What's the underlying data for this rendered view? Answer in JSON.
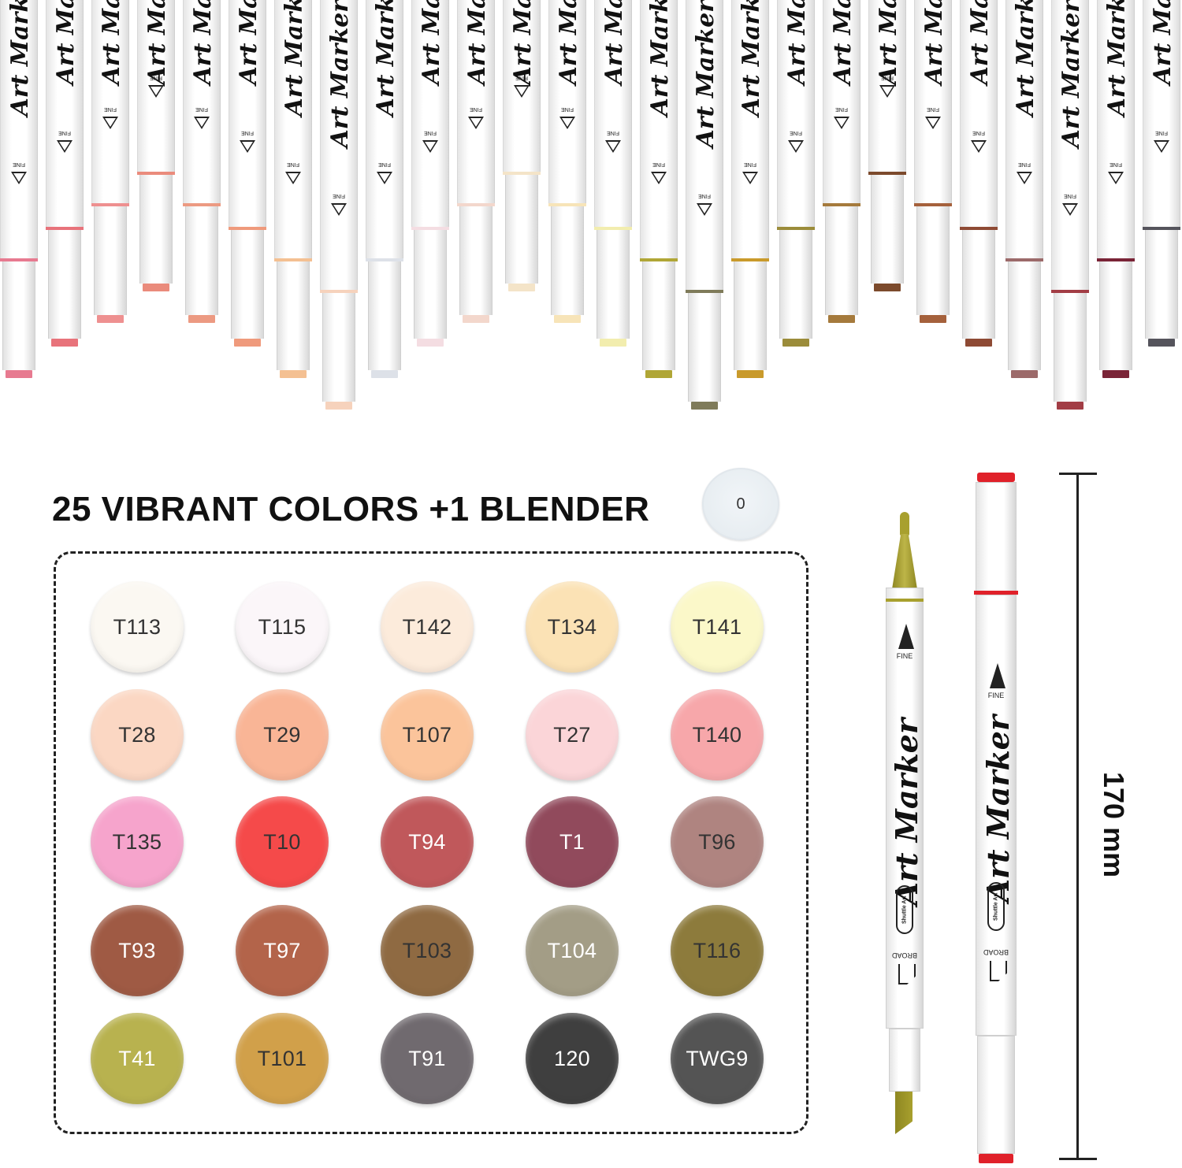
{
  "headline": "25 VIBRANT COLORS +1 BLENDER",
  "blender": {
    "label": "0",
    "color": "#e9eff3"
  },
  "marker_text": {
    "script": "Art Marker",
    "fine_label": "FINE",
    "broad_label": "BROAD",
    "brand_label": "Shuttle Art"
  },
  "dimension": {
    "label": "170 mm"
  },
  "top_markers": [
    {
      "color": "#e77a90"
    },
    {
      "color": "#e8737b"
    },
    {
      "color": "#ee9090"
    },
    {
      "color": "#ea8b7c"
    },
    {
      "color": "#ec9a82"
    },
    {
      "color": "#ef9a7c"
    },
    {
      "color": "#f4c092"
    },
    {
      "color": "#f6d2bc"
    },
    {
      "color": "#dde1e8"
    },
    {
      "color": "#f4dde2"
    },
    {
      "color": "#f3d7cc"
    },
    {
      "color": "#f4e4c8"
    },
    {
      "color": "#f7e4b8"
    },
    {
      "color": "#f2edae"
    },
    {
      "color": "#b0a636"
    },
    {
      "color": "#7f7b5a"
    },
    {
      "color": "#c99a2b"
    },
    {
      "color": "#9b8c3a"
    },
    {
      "color": "#a57a3c"
    },
    {
      "color": "#7c4a2c"
    },
    {
      "color": "#a5613c"
    },
    {
      "color": "#8e4a34"
    },
    {
      "color": "#9c6a6a"
    },
    {
      "color": "#a23d45"
    },
    {
      "color": "#7a2437"
    },
    {
      "color": "#55545c"
    }
  ],
  "swatches": [
    {
      "label": "T113",
      "color": "#fbf8f2",
      "text": "#333333"
    },
    {
      "label": "T115",
      "color": "#fbf6f9",
      "text": "#333333"
    },
    {
      "label": "T142",
      "color": "#fcebdb",
      "text": "#333333"
    },
    {
      "label": "T134",
      "color": "#fbe2b5",
      "text": "#333333"
    },
    {
      "label": "T141",
      "color": "#fbf8c9",
      "text": "#333333"
    },
    {
      "label": "T28",
      "color": "#fbd7c3",
      "text": "#333333"
    },
    {
      "label": "T29",
      "color": "#f9b596",
      "text": "#333333"
    },
    {
      "label": "T107",
      "color": "#fbc49b",
      "text": "#333333"
    },
    {
      "label": "T27",
      "color": "#fbd5d8",
      "text": "#333333"
    },
    {
      "label": "T140",
      "color": "#f7a7aa",
      "text": "#333333"
    },
    {
      "label": "T135",
      "color": "#f6a4cc",
      "text": "#333333"
    },
    {
      "label": "T10",
      "color": "#f54a4a",
      "text": "#333333"
    },
    {
      "label": "T94",
      "color": "#c0585b",
      "text": "#ffffff"
    },
    {
      "label": "T1",
      "color": "#914a5c",
      "text": "#ffffff"
    },
    {
      "label": "T96",
      "color": "#af8480",
      "text": "#333333"
    },
    {
      "label": "T93",
      "color": "#9f5a44",
      "text": "#ffffff"
    },
    {
      "label": "T97",
      "color": "#b3644a",
      "text": "#ffffff"
    },
    {
      "label": "T103",
      "color": "#8f6a42",
      "text": "#333333"
    },
    {
      "label": "T104",
      "color": "#a39d86",
      "text": "#ffffff"
    },
    {
      "label": "T116",
      "color": "#8d7b3c",
      "text": "#333333"
    },
    {
      "label": "T41",
      "color": "#b8b24f",
      "text": "#ffffff"
    },
    {
      "label": "T101",
      "color": "#d1a04a",
      "text": "#333333"
    },
    {
      "label": "T91",
      "color": "#706a6f",
      "text": "#ffffff"
    },
    {
      "label": "120",
      "color": "#3f3f3f",
      "text": "#ffffff"
    },
    {
      "label": "TWG9",
      "color": "#545454",
      "text": "#ffffff"
    }
  ],
  "side_markers": [
    {
      "tip_color": "#a8a02e",
      "band_color": "#a8a02e"
    },
    {
      "tip_color": "#e0212a",
      "band_color": "#e0212a"
    }
  ]
}
